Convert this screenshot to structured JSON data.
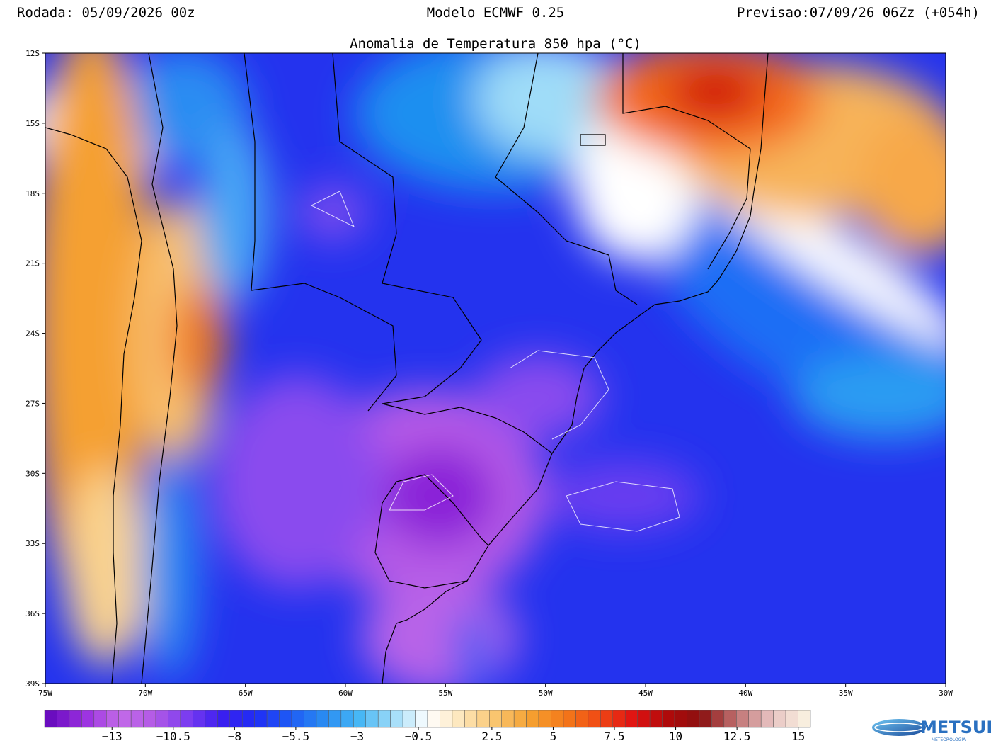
{
  "header": {
    "left": "Rodada: 05/09/2026 00z",
    "center": "Modelo ECMWF 0.25",
    "right": "Previsao:07/09/26 06Zz (+054h)",
    "title": "Anomalia de Temperatura 850 hpa (°C)"
  },
  "map": {
    "lon_range": [
      -75,
      -30
    ],
    "lat_range": [
      -39,
      -12
    ],
    "lat_ticks": [
      {
        "value": -12,
        "label": "12S"
      },
      {
        "value": -15,
        "label": "15S"
      },
      {
        "value": -18,
        "label": "18S"
      },
      {
        "value": -21,
        "label": "21S"
      },
      {
        "value": -24,
        "label": "24S"
      },
      {
        "value": -27,
        "label": "27S"
      },
      {
        "value": -30,
        "label": "30S"
      },
      {
        "value": -33,
        "label": "33S"
      },
      {
        "value": -36,
        "label": "36S"
      },
      {
        "value": -39,
        "label": "39S"
      }
    ],
    "lon_ticks": [
      {
        "value": -75,
        "label": "75W"
      },
      {
        "value": -70,
        "label": "70W"
      },
      {
        "value": -65,
        "label": "65W"
      },
      {
        "value": -60,
        "label": "60W"
      },
      {
        "value": -55,
        "label": "55W"
      },
      {
        "value": -50,
        "label": "50W"
      },
      {
        "value": -45,
        "label": "45W"
      },
      {
        "value": -40,
        "label": "40W"
      },
      {
        "value": -35,
        "label": "35W"
      },
      {
        "value": -30,
        "label": "30W"
      }
    ]
  },
  "colorbar": {
    "range": [
      -15.75,
      15.5
    ],
    "colors": [
      "#6a0dbf",
      "#9a2fe0",
      "#c26be8",
      "#b35ae6",
      "#7a3cf0",
      "#3a1ef0",
      "#1f2ef5",
      "#1e5cf5",
      "#2a8cf2",
      "#46b6f5",
      "#9fdcf8",
      "#ffffff",
      "#fde6b8",
      "#f9c46e",
      "#f5a030",
      "#f47a1a",
      "#f04a14",
      "#e01212",
      "#b00a0a",
      "#8a1010",
      "#c07070",
      "#e6c0c0",
      "#f8eede"
    ],
    "ticks": [
      {
        "value": -13,
        "label": "−13"
      },
      {
        "value": -10.5,
        "label": "−10.5"
      },
      {
        "value": -8,
        "label": "−8"
      },
      {
        "value": -5.5,
        "label": "−5.5"
      },
      {
        "value": -3,
        "label": "−3"
      },
      {
        "value": -0.5,
        "label": "−0.5"
      },
      {
        "value": 2.5,
        "label": "2.5"
      },
      {
        "value": 5,
        "label": "5"
      },
      {
        "value": 7.5,
        "label": "7.5"
      },
      {
        "value": 10,
        "label": "10"
      },
      {
        "value": 12.5,
        "label": "12.5"
      },
      {
        "value": 15,
        "label": "15"
      }
    ]
  },
  "logo": {
    "name": "METSUL",
    "tagline": "METEOROLOGIA"
  }
}
